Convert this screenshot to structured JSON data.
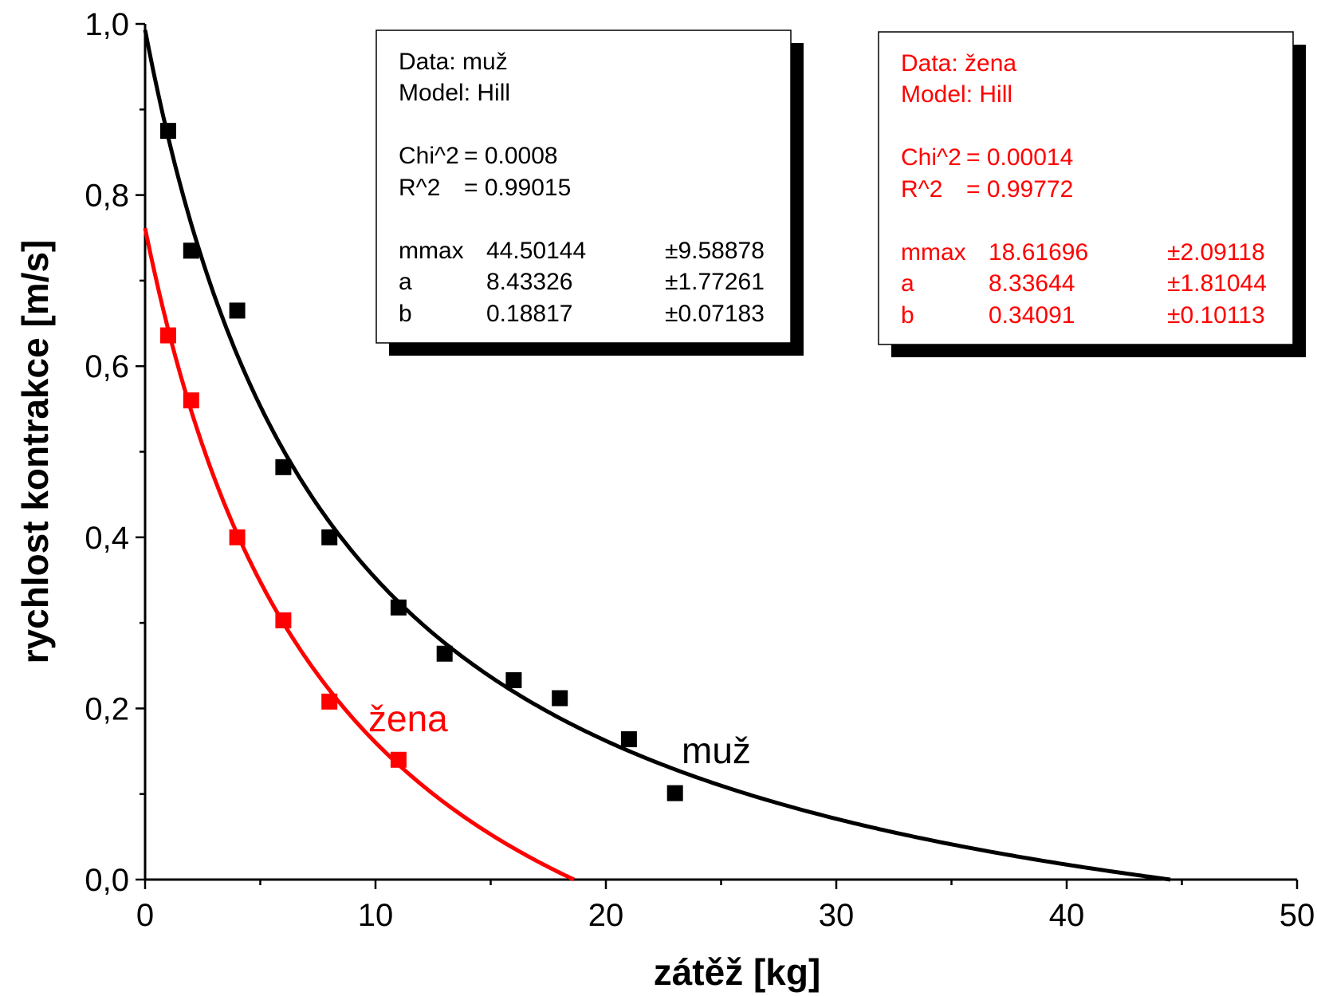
{
  "chart_data": {
    "type": "scatter",
    "xlabel": "zátěž [kg]",
    "ylabel": "rychlost kontrakce [m/s]",
    "xlim": [
      0,
      50
    ],
    "ylim": [
      0,
      1.0
    ],
    "x_ticks": [
      0,
      10,
      20,
      30,
      40,
      50
    ],
    "x_tick_labels": [
      "0",
      "10",
      "20",
      "30",
      "40",
      "50"
    ],
    "y_ticks": [
      0,
      0.2,
      0.4,
      0.6,
      0.8,
      1.0
    ],
    "y_tick_labels": [
      "0,0",
      "0,2",
      "0,4",
      "0,6",
      "0,8",
      "1,0"
    ],
    "grid": false,
    "series": [
      {
        "name": "muž",
        "color": "#000000",
        "points": [
          {
            "x": 1,
            "y": 0.875
          },
          {
            "x": 2,
            "y": 0.735
          },
          {
            "x": 4,
            "y": 0.665
          },
          {
            "x": 6,
            "y": 0.482
          },
          {
            "x": 8,
            "y": 0.4
          },
          {
            "x": 11,
            "y": 0.318
          },
          {
            "x": 13,
            "y": 0.264
          },
          {
            "x": 16,
            "y": 0.233
          },
          {
            "x": 18,
            "y": 0.212
          },
          {
            "x": 21,
            "y": 0.164
          },
          {
            "x": 23,
            "y": 0.101
          }
        ],
        "fit": {
          "model": "Hill",
          "mmax": 44.50144,
          "a": 8.43326,
          "b": 0.18817
        }
      },
      {
        "name": "žena",
        "color": "#ff0000",
        "points": [
          {
            "x": 1,
            "y": 0.636
          },
          {
            "x": 2,
            "y": 0.56
          },
          {
            "x": 4,
            "y": 0.4
          },
          {
            "x": 6,
            "y": 0.303
          },
          {
            "x": 8,
            "y": 0.208
          },
          {
            "x": 11,
            "y": 0.14
          }
        ],
        "fit": {
          "model": "Hill",
          "mmax": 18.61696,
          "a": 8.33644,
          "b": 0.34091
        }
      }
    ],
    "annotations": [
      {
        "text": "muž",
        "color": "#000000"
      },
      {
        "text": "žena",
        "color": "#ff0000"
      }
    ],
    "fit_boxes": [
      {
        "color": "#000000",
        "lines": [
          [
            "Data: muž"
          ],
          [
            "Model: Hill"
          ],
          [],
          [
            "Chi^2",
            "= 0.0008"
          ],
          [
            "R^2",
            "= 0.99015"
          ],
          [],
          [
            "mmax",
            "44.50144",
            "±9.58878"
          ],
          [
            "a",
            "8.43326",
            "±1.77261"
          ],
          [
            "b",
            "0.18817",
            "±0.07183"
          ]
        ]
      },
      {
        "color": "#ff0000",
        "lines": [
          [
            "Data: žena"
          ],
          [
            "Model: Hill"
          ],
          [],
          [
            "Chi^2",
            "= 0.00014"
          ],
          [
            "R^2",
            "= 0.99772"
          ],
          [],
          [
            "mmax",
            "18.61696",
            "±2.09118"
          ],
          [
            "a",
            "8.33644",
            "±1.81044"
          ],
          [
            "b",
            "0.34091",
            "±0.10113"
          ]
        ]
      }
    ]
  }
}
